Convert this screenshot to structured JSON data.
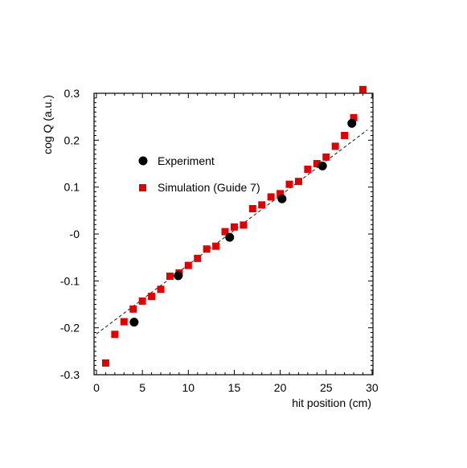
{
  "chart_data": {
    "type": "scatter",
    "xlabel": "hit position (cm)",
    "ylabel": "cog Q (a.u.)",
    "xlim": [
      0,
      30
    ],
    "ylim": [
      -0.3,
      0.3
    ],
    "xticks": [
      0,
      5,
      10,
      15,
      20,
      25,
      30
    ],
    "xtick_labels": [
      "0",
      "5",
      "10",
      "15",
      "20",
      "25",
      "30"
    ],
    "yticks": [
      -0.3,
      -0.2,
      -0.1,
      0,
      0.1,
      0.2,
      0.3
    ],
    "ytick_labels": [
      "-0.3",
      "-0.2",
      "-0.1",
      "-0",
      "0.1",
      "0.2",
      "0.3"
    ],
    "grid": false,
    "legend_position": "upper-left",
    "series": [
      {
        "name": "Experiment",
        "marker": "circle",
        "color": "#000000",
        "x": [
          4.1,
          8.9,
          14.5,
          20.2,
          24.6,
          27.8
        ],
        "y": [
          -0.188,
          -0.089,
          -0.007,
          0.075,
          0.145,
          0.236
        ]
      },
      {
        "name": "Simulation (Guide 7)",
        "marker": "square",
        "color": "#e00000",
        "x": [
          1,
          2,
          3,
          4,
          5,
          6,
          7,
          8,
          9,
          10,
          11,
          12,
          13,
          14,
          15,
          16,
          17,
          18,
          19,
          20,
          21,
          22,
          23,
          24,
          25,
          26,
          27,
          28,
          29
        ],
        "y": [
          -0.275,
          -0.214,
          -0.187,
          -0.16,
          -0.143,
          -0.133,
          -0.118,
          -0.09,
          -0.083,
          -0.067,
          -0.052,
          -0.032,
          -0.026,
          0.005,
          0.015,
          0.019,
          0.054,
          0.062,
          0.079,
          0.086,
          0.106,
          0.112,
          0.138,
          0.15,
          0.164,
          0.187,
          0.21,
          0.248,
          0.308
        ]
      }
    ],
    "fit_line": {
      "style": "dashed",
      "color": "#000000",
      "x": [
        0,
        29.5
      ],
      "y": [
        -0.213,
        0.222
      ]
    }
  }
}
